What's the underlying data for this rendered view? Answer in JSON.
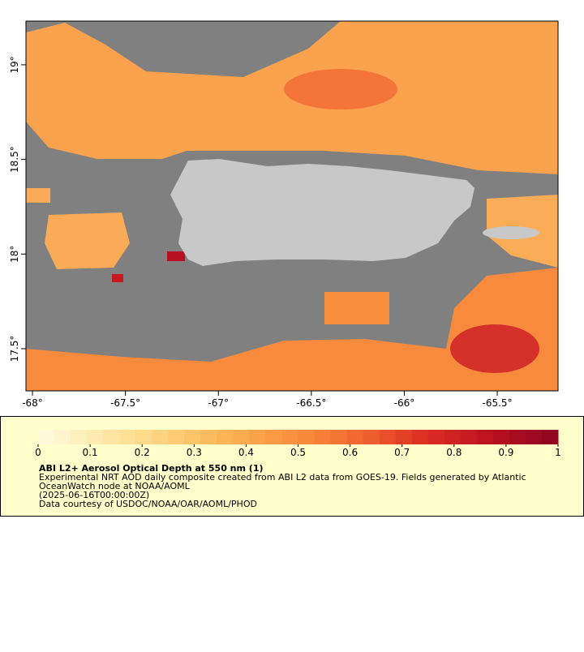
{
  "map": {
    "xlim": [
      -68.035,
      -65.173
    ],
    "ylim": [
      17.277,
      19.231
    ],
    "xticks": [
      {
        "value": -68,
        "label": "-68°"
      },
      {
        "value": -67.5,
        "label": "-67.5°"
      },
      {
        "value": -67,
        "label": "-67°"
      },
      {
        "value": -66.5,
        "label": "-66.5°"
      },
      {
        "value": -66,
        "label": "-66°"
      },
      {
        "value": -65.5,
        "label": "-65.5°"
      }
    ],
    "yticks": [
      {
        "value": 17.5,
        "label": "17.5°"
      },
      {
        "value": 18,
        "label": "18°"
      },
      {
        "value": 18.5,
        "label": "18.5°"
      },
      {
        "value": 19,
        "label": "19°"
      }
    ]
  },
  "colorbar": {
    "lim": [
      0,
      1
    ],
    "ticks": [
      0,
      0.1,
      0.2,
      0.3,
      0.4,
      0.5,
      0.6,
      0.7,
      0.8,
      0.9,
      1
    ],
    "colors": [
      "#fffbe0",
      "#fee9a8",
      "#fdd07a",
      "#fcb050",
      "#f98e3c",
      "#f0642e",
      "#db2c22",
      "#b9101f",
      "#8c0520"
    ]
  },
  "legend": {
    "title": "ABI L2+ Aerosol Optical Depth at 550 nm (1)",
    "lines": [
      "Experimental NRT AOD daily composite created from ABI L2 data from GOES-19. Fields generated by Atlantic",
      "OceanWatch node at NOAA/AOML",
      "(2025-06-16T00:00:00Z)",
      "Data courtesy of USDOC/NOAA/OAR/AOML/PHOD"
    ]
  }
}
